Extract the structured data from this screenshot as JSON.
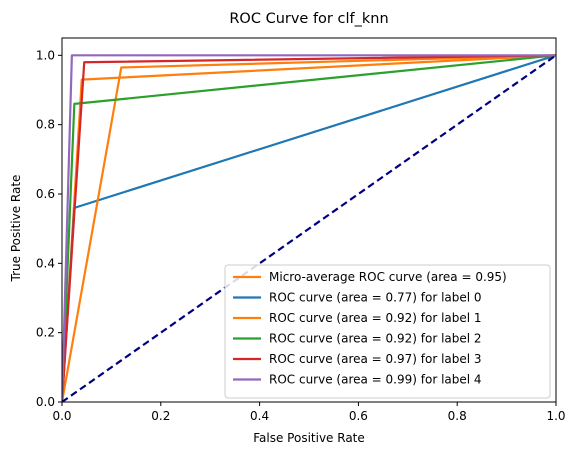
{
  "chart_data": {
    "type": "line",
    "title": "ROC Curve for clf_knn",
    "xlabel": "False Positive Rate",
    "ylabel": "True Positive Rate",
    "xlim": [
      0.0,
      1.0
    ],
    "ylim": [
      0.0,
      1.05
    ],
    "xticks": [
      "0.0",
      "0.2",
      "0.4",
      "0.6",
      "0.8",
      "1.0"
    ],
    "yticks": [
      "0.0",
      "0.2",
      "0.4",
      "0.6",
      "0.8",
      "1.0"
    ],
    "xtick_values": [
      0.0,
      0.2,
      0.4,
      0.6,
      0.8,
      1.0
    ],
    "ytick_values": [
      0.0,
      0.2,
      0.4,
      0.6,
      0.8,
      1.0
    ],
    "grid": false,
    "legend_position": "lower-right",
    "series": [
      {
        "name": "Micro-average ROC curve (area = 0.95)",
        "color": "#ff7f0e",
        "style": "solid",
        "x": [
          0.0,
          0.04,
          1.0
        ],
        "y": [
          0.0,
          0.93,
          1.0
        ]
      },
      {
        "name": "ROC curve (area = 0.77) for label 0",
        "color": "#1f77b4",
        "style": "solid",
        "x": [
          0.0,
          0.025,
          1.0
        ],
        "y": [
          0.0,
          0.56,
          1.0
        ]
      },
      {
        "name": "ROC curve (area = 0.92) for label 1",
        "color": "#ff7f0e",
        "style": "solid",
        "x": [
          0.0,
          0.12,
          1.0
        ],
        "y": [
          0.0,
          0.965,
          1.0
        ]
      },
      {
        "name": "ROC curve (area = 0.92) for label 2",
        "color": "#2ca02c",
        "style": "solid",
        "x": [
          0.0,
          0.025,
          1.0
        ],
        "y": [
          0.0,
          0.86,
          1.0
        ]
      },
      {
        "name": "ROC curve (area = 0.97) for label 3",
        "color": "#d62728",
        "style": "solid",
        "x": [
          0.0,
          0.045,
          1.0
        ],
        "y": [
          0.0,
          0.98,
          1.0
        ]
      },
      {
        "name": "ROC curve (area = 0.99) for label 4",
        "color": "#9467bd",
        "style": "solid",
        "x": [
          0.0,
          0.02,
          1.0
        ],
        "y": [
          0.0,
          1.0,
          1.0
        ]
      },
      {
        "color": "#000080",
        "style": "dashed",
        "x": [
          0.0,
          1.0
        ],
        "y": [
          0.0,
          1.0
        ]
      }
    ]
  }
}
